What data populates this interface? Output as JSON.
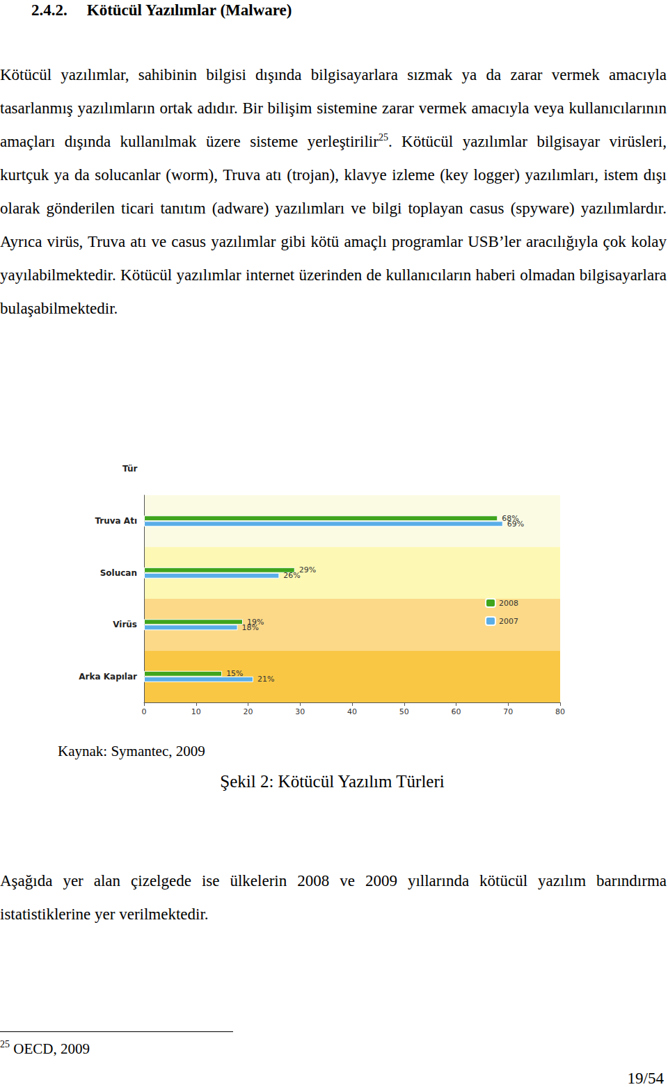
{
  "heading": {
    "number": "2.4.2.",
    "title": "Kötücül Yazılımlar (Malware)"
  },
  "paragraph1": {
    "before_ref": "Kötücül yazılımlar, sahibinin bilgisi dışında bilgisayarlara sızmak ya da zarar vermek amacıyla tasarlanmış yazılımların ortak adıdır. Bir bilişim sistemine zarar vermek amacıyla veya kullanıcılarının amaçları dışında kullanılmak üzere sisteme yerleştirilir",
    "ref": "25",
    "after_ref": ". Kötücül yazılımlar bilgisayar virüsleri, kurtçuk ya da solucanlar (worm), Truva atı (trojan), klavye izleme (key logger) yazılımları, istem dışı olarak gönderilen ticari tanıtım (adware) yazılımları ve bilgi toplayan casus (spyware) yazılımlardır. Ayrıca virüs, Truva atı ve casus yazılımlar gibi kötü amaçlı programlar USB’ler aracılığıyla çok kolay yayılabilmektedir. Kötücül yazılımlar internet üzerinden de kullanıcıların haberi olmadan bilgisayarlara bulaşabilmektedir."
  },
  "chart_data": {
    "type": "bar",
    "orientation": "horizontal",
    "ylabel": "Tür",
    "categories": [
      "Truva Atı",
      "Solucan",
      "Virüs",
      "Arka Kapılar"
    ],
    "series": [
      {
        "name": "2008",
        "color": "#3fa51c",
        "values": [
          68,
          29,
          19,
          15
        ],
        "value_labels": [
          "68%",
          "29%",
          "19%",
          "15%"
        ]
      },
      {
        "name": "2007",
        "color": "#5aaee8",
        "values": [
          69,
          26,
          18,
          21
        ],
        "value_labels": [
          "69%",
          "26%",
          "18%",
          "21%"
        ]
      }
    ],
    "xlim": [
      0,
      80
    ],
    "xticks": [
      0,
      10,
      20,
      30,
      40,
      50,
      60,
      70,
      80
    ],
    "data_labels": true,
    "legend": "right",
    "grid": false
  },
  "source": "Kaynak: Symantec, 2009",
  "caption": "Şekil 2: Kötücül Yazılım Türleri",
  "paragraph2": "Aşağıda yer alan çizelgede ise ülkelerin 2008 ve 2009 yıllarında kötücül yazılım barındırma istatistiklerine yer verilmektedir.",
  "footnote": {
    "mark": "25",
    "text": "OECD, 2009"
  },
  "page": "19/54"
}
